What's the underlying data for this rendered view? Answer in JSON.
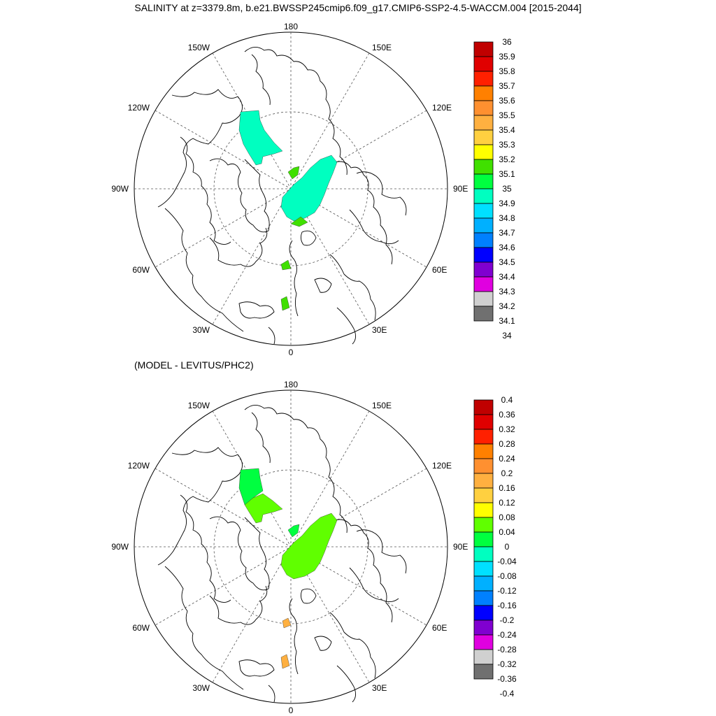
{
  "title": "SALINITY at z=3379.8m, b.e21.BWSSP245cmip6.f09_g17.CMIP6-SSP2-4.5-WACCM.004 [2015-2044]",
  "subtitle": "(MODEL - LEVITUS/PHC2)",
  "lon_labels": {
    "top": "180",
    "top_left": "150W",
    "top_right": "150E",
    "upper_left": "120W",
    "upper_right": "120E",
    "left": "90W",
    "right": "90E",
    "lower_left": "60W",
    "lower_right": "60E",
    "bottom_left": "30W",
    "bottom_right": "30E",
    "bottom": "0"
  },
  "colorbar_top": {
    "labels": [
      "36",
      "35.9",
      "35.8",
      "35.7",
      "35.6",
      "35.5",
      "35.4",
      "35.3",
      "35.2",
      "35.1",
      "35",
      "34.9",
      "34.8",
      "34.7",
      "34.6",
      "34.5",
      "34.4",
      "34.3",
      "34.2",
      "34.1",
      "34"
    ],
    "colors": [
      "#c00000",
      "#e00000",
      "#ff2000",
      "#ff8000",
      "#ff9030",
      "#ffb040",
      "#ffd040",
      "#ffff00",
      "#40e000",
      "#00ff40",
      "#00ffc0",
      "#00e0ff",
      "#00b0ff",
      "#0080ff",
      "#0000ff",
      "#8000d0",
      "#e000e0",
      "#d0d0d0",
      "#707070"
    ]
  },
  "colorbar_bottom": {
    "labels": [
      "0.4",
      "0.36",
      "0.32",
      "0.28",
      "0.24",
      "0.2",
      "0.16",
      "0.12",
      "0.08",
      "0.04",
      "0",
      "-0.04",
      "-0.08",
      "-0.12",
      "-0.16",
      "-0.2",
      "-0.24",
      "-0.28",
      "-0.32",
      "-0.36",
      "-0.4"
    ],
    "colors": [
      "#c00000",
      "#e00000",
      "#ff2000",
      "#ff8000",
      "#ff9030",
      "#ffb040",
      "#ffd040",
      "#ffff00",
      "#60ff00",
      "#00ff40",
      "#00ffc0",
      "#00e0ff",
      "#00b0ff",
      "#0080ff",
      "#0000ff",
      "#8000d0",
      "#e000e0",
      "#d0d0d0",
      "#707070"
    ]
  },
  "field_colors": {
    "top_main": "#00ffc0",
    "top_green": "#40e000",
    "bottom_main": "#60ff00",
    "bottom_green": "#00ff40",
    "bottom_orange": "#ffb040"
  }
}
